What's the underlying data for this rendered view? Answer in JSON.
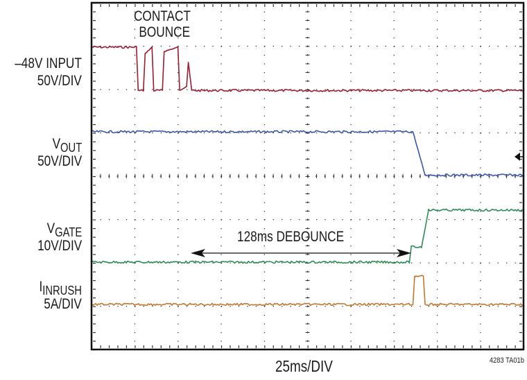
{
  "chart_data": {
    "type": "line",
    "subtype": "oscilloscope-capture",
    "title": "",
    "xlabel": "25ms/DIV",
    "figure_id": "4283 TA01b",
    "grid": {
      "h_divisions": 10,
      "v_divisions": 8,
      "style": "dotted",
      "center_crosshair": true
    },
    "x_unit": "ms",
    "x_per_div": 25,
    "x_range_ms": [
      0,
      250
    ],
    "annotations": [
      {
        "text": "CONTACT BOUNCE",
        "line1": "CONTACT",
        "line2": "BOUNCE",
        "near_time_ms": 40
      },
      {
        "text": "128ms DEBOUNCE",
        "arrow_from_ms": 57,
        "arrow_to_ms": 185
      }
    ],
    "series": [
      {
        "name": "−48V INPUT",
        "scale": "50V/DIV",
        "color": "#9b1b30",
        "points_ms_div": [
          [
            0,
            0
          ],
          [
            26,
            0
          ],
          [
            27,
            -1
          ],
          [
            30,
            -1
          ],
          [
            31,
            -0.15
          ],
          [
            35,
            0
          ],
          [
            36,
            -1
          ],
          [
            41,
            -1
          ],
          [
            42,
            -0.1
          ],
          [
            50,
            0
          ],
          [
            51,
            -1
          ],
          [
            55,
            -0.9
          ],
          [
            56,
            -0.35
          ],
          [
            58,
            -1
          ],
          [
            250,
            -1
          ]
        ]
      },
      {
        "name": "VOUT",
        "scale": "50V/DIV",
        "color": "#3a56a8",
        "points_ms_div": [
          [
            0,
            0
          ],
          [
            186,
            0
          ],
          [
            193,
            -1
          ],
          [
            250,
            -1
          ]
        ]
      },
      {
        "name": "VGATE",
        "scale": "10V/DIV",
        "color": "#2e8b57",
        "points_ms_div": [
          [
            0,
            0
          ],
          [
            184,
            0
          ],
          [
            185,
            0.35
          ],
          [
            191,
            0.35
          ],
          [
            195,
            1.2
          ],
          [
            250,
            1.2
          ]
        ]
      },
      {
        "name": "IINRUSH",
        "scale": "5A/DIV",
        "color": "#c07830",
        "points_ms_div": [
          [
            0,
            0
          ],
          [
            186,
            0
          ],
          [
            187,
            0.65
          ],
          [
            192,
            0.65
          ],
          [
            193,
            0
          ],
          [
            250,
            0
          ]
        ]
      }
    ]
  },
  "labels": {
    "input": {
      "line1": "–48V INPUT",
      "line2": "50V/DIV"
    },
    "vout": {
      "main": "V",
      "sub": "OUT",
      "scale": "50V/DIV"
    },
    "vgate": {
      "main": "V",
      "sub": "GATE",
      "scale": "10V/DIV"
    },
    "iinrush": {
      "main": "I",
      "sub": "INRUSH",
      "scale": "5A/DIV"
    }
  },
  "annotations": {
    "contact_line1": "CONTACT",
    "contact_line2": "BOUNCE",
    "debounce": "128ms DEBOUNCE"
  },
  "footer": {
    "timebase": "25ms/DIV",
    "figure_id": "4283 TA01b"
  },
  "colors": {
    "input": "#9b1b30",
    "vout": "#3a56a8",
    "vgate": "#2e8b57",
    "iinrush": "#c07830",
    "frame": "#111111",
    "grid": "#333333"
  }
}
